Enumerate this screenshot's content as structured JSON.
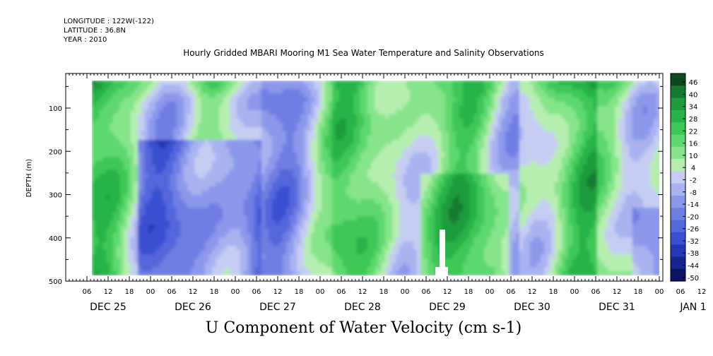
{
  "header": {
    "longitude": "LONGITUDE : 122W(-122)",
    "latitude": "LATITUDE : 36.8N",
    "year": "YEAR : 2010"
  },
  "chart_data": {
    "type": "heatmap",
    "title": "Hourly Gridded MBARI Mooring M1 Sea Water Temperature and Salinity Observations",
    "variable_label": "U Component of Water Velocity (cm s-1)",
    "ylabel": "DEPTH (m)",
    "y_reversed": true,
    "ylim": [
      500,
      20
    ],
    "y_tick_labels": [
      "100",
      "200",
      "300",
      "400",
      "500"
    ],
    "y_tick_values": [
      100,
      200,
      300,
      400,
      500
    ],
    "x_hour_labels": [
      "06",
      "12",
      "18",
      "00",
      "06",
      "12",
      "18",
      "00",
      "06",
      "12",
      "18",
      "00",
      "06",
      "12",
      "18",
      "00",
      "06",
      "12",
      "18",
      "00",
      "06",
      "12",
      "18",
      "00",
      "06",
      "12",
      "18",
      "00",
      "06",
      "12",
      "18",
      "00"
    ],
    "x_day_labels": [
      "DEC 25",
      "DEC 26",
      "DEC 27",
      "DEC 28",
      "DEC 29",
      "DEC 30",
      "DEC 31",
      "JAN  1"
    ],
    "x_range": [
      "2010-12-25 00:00",
      "2011-01-01 00:00"
    ],
    "data_start": "2010-12-25 10:00",
    "data_depth_range": [
      20,
      485
    ],
    "colorbar": {
      "levels": [
        "46",
        "40",
        "34",
        "28",
        "22",
        "16",
        "10",
        "4",
        "-2",
        "-8",
        "-14",
        "-20",
        "-26",
        "-32",
        "-38",
        "-44",
        "-50"
      ],
      "range": [
        -50,
        50
      ],
      "colors": [
        "#0c4a1e",
        "#137a31",
        "#1d9c3d",
        "#27b347",
        "#3cc857",
        "#5dd86e",
        "#86e48a",
        "#b6eeb0",
        "#c5cdf2",
        "#a9b3f0",
        "#8c98ea",
        "#6f7ee3",
        "#5466dc",
        "#3a50d2",
        "#2538b8",
        "#152590",
        "#0a1462"
      ]
    },
    "grid": false,
    "legend": "colorbar-right"
  }
}
